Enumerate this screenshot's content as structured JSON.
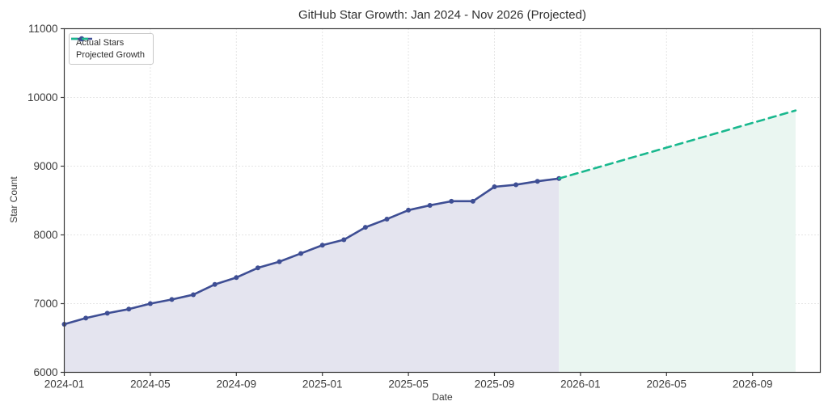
{
  "chart_data": {
    "type": "line",
    "title": "GitHub Star Growth: Jan 2024 - Nov 2026 (Projected)",
    "xlabel": "Date",
    "ylabel": "Star Count",
    "ylim": [
      6000,
      11000
    ],
    "grid": "dotted",
    "legend_position": "upper-left",
    "y_ticks": [
      6000,
      7000,
      8000,
      9000,
      10000,
      11000
    ],
    "x_ticks": [
      "2024-01",
      "2024-05",
      "2024-09",
      "2025-01",
      "2025-05",
      "2025-09",
      "2026-01",
      "2026-05",
      "2026-09"
    ],
    "series": [
      {
        "name": "Actual Stars",
        "style": "solid",
        "marker": "circle",
        "color": "#3e4e94",
        "fill": "#e4e4ef",
        "x": [
          "2024-01",
          "2024-02",
          "2024-03",
          "2024-04",
          "2024-05",
          "2024-06",
          "2024-07",
          "2024-08",
          "2024-09",
          "2024-10",
          "2024-11",
          "2024-12",
          "2025-01",
          "2025-02",
          "2025-03",
          "2025-04",
          "2025-05",
          "2025-06",
          "2025-07",
          "2025-08",
          "2025-09",
          "2025-10",
          "2025-11",
          "2025-12"
        ],
        "values": [
          6700,
          6790,
          6860,
          6920,
          7000,
          7060,
          7130,
          7280,
          7380,
          7520,
          7610,
          7730,
          7850,
          7930,
          8110,
          8230,
          8360,
          8430,
          8490,
          8490,
          8700,
          8730,
          8780,
          8820
        ]
      },
      {
        "name": "Projected Growth",
        "style": "dashed",
        "marker": "none",
        "color": "#19b88e",
        "fill": "#eaf6f1",
        "x": [
          "2025-12",
          "2026-01",
          "2026-02",
          "2026-03",
          "2026-04",
          "2026-05",
          "2026-06",
          "2026-07",
          "2026-08",
          "2026-09",
          "2026-10",
          "2026-11"
        ],
        "values": [
          8820,
          8910,
          9000,
          9090,
          9180,
          9270,
          9360,
          9450,
          9540,
          9630,
          9720,
          9810
        ]
      }
    ]
  }
}
